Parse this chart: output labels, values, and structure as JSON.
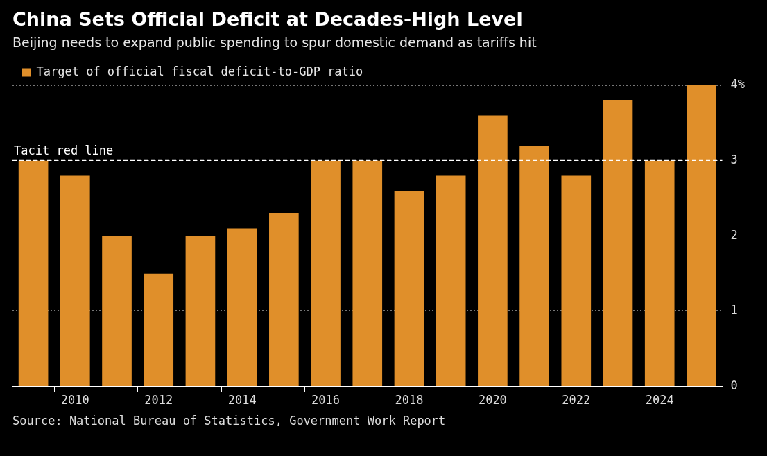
{
  "chart_data": {
    "type": "bar",
    "title": "China Sets Official Deficit at Decades-High Level",
    "subtitle": "Beijing needs to expand public spending to spur domestic demand as tariffs hit",
    "categories": [
      null,
      "2010",
      null,
      "2012",
      null,
      "2014",
      null,
      "2016",
      null,
      "2018",
      null,
      "2020",
      null,
      "2022",
      null,
      "2024",
      null
    ],
    "series": [
      {
        "name": "Target of official fiscal deficit-to-GDP ratio",
        "color": "#e08f2a",
        "values": [
          3.0,
          2.8,
          2.0,
          1.5,
          2.0,
          2.1,
          2.3,
          3.0,
          3.0,
          2.6,
          2.8,
          3.6,
          3.2,
          2.8,
          3.8,
          3.0,
          4.0
        ]
      }
    ],
    "ylim": [
      0,
      4
    ],
    "yticks": [
      0,
      1,
      2,
      3,
      {
        "value": 4,
        "label": "4%"
      }
    ],
    "grid": "y",
    "legend": "top left",
    "ref_lines": [
      {
        "axis": "y",
        "value": 3,
        "label": "Tacit red line",
        "color": "#ffffff",
        "line_style": "dashed"
      }
    ],
    "annotations": [
      "Source: National Bureau of Statistics, Government Work Report"
    ]
  }
}
